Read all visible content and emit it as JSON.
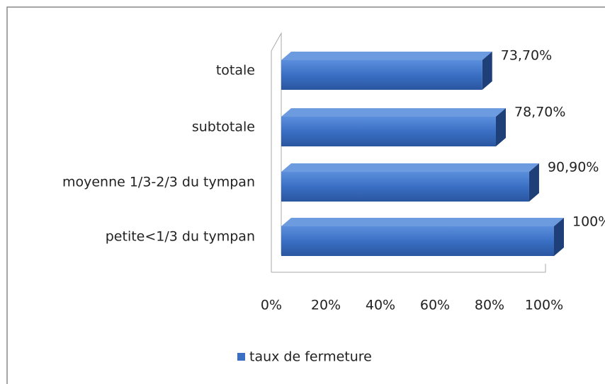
{
  "chart_data": {
    "type": "bar",
    "orientation": "horizontal",
    "categories": [
      "totale",
      "subtotale",
      "moyenne 1/3-2/3 du tympan",
      "petite<1/3 du tympan"
    ],
    "series": [
      {
        "name": "taux de fermeture",
        "color": "#3a6fc4",
        "values": [
          73.7,
          78.7,
          90.9,
          100
        ],
        "value_labels": [
          "73,70%",
          "78,70%",
          "90,90%",
          "100%"
        ]
      }
    ],
    "xlim": [
      0,
      100
    ],
    "xticks": [
      {
        "value": 0,
        "label": "0%"
      },
      {
        "value": 20,
        "label": "20%"
      },
      {
        "value": 40,
        "label": "40%"
      },
      {
        "value": 60,
        "label": "60%"
      },
      {
        "value": 80,
        "label": "80%"
      },
      {
        "value": 100,
        "label": "100%"
      }
    ],
    "legend": "bottom"
  }
}
